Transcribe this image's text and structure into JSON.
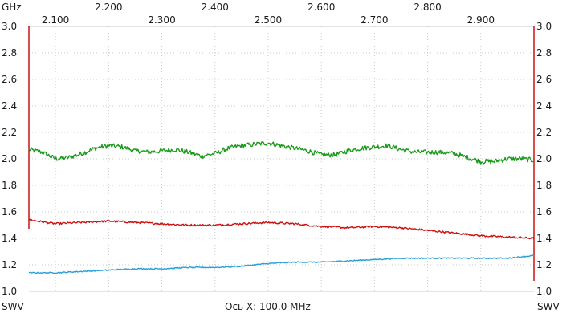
{
  "header": {
    "unit_label": "GHz"
  },
  "footer": {
    "left_label": "SWV",
    "axis_caption": "Ось X: 100.0 MHz",
    "right_label": "SWV"
  },
  "colors": {
    "background": "#ffffff",
    "grid": "#c8c8c8",
    "frame": "#cc0000",
    "series_green": "#1a9a1a",
    "series_red": "#cc1111",
    "series_blue": "#2a9ed8"
  },
  "chart_data": {
    "type": "line",
    "x_range": [
      2.05,
      3.0
    ],
    "ylim": [
      1.0,
      3.0
    ],
    "grid": true,
    "x_ticks_lower": [
      "2.100",
      "2.300",
      "2.500",
      "2.700",
      "2.900"
    ],
    "x_ticks_upper": [
      "2.200",
      "2.400",
      "2.600",
      "2.800"
    ],
    "y_ticks": [
      "3.0",
      "2.8",
      "2.6",
      "2.4",
      "2.2",
      "2.0",
      "1.8",
      "1.6",
      "1.4",
      "1.2",
      "1.0"
    ],
    "series": [
      {
        "color": "#1a9a1a",
        "x": [
          2.05,
          2.075,
          2.1,
          2.125,
          2.15,
          2.175,
          2.2,
          2.225,
          2.25,
          2.275,
          2.3,
          2.325,
          2.35,
          2.375,
          2.4,
          2.425,
          2.45,
          2.475,
          2.5,
          2.525,
          2.55,
          2.575,
          2.6,
          2.625,
          2.65,
          2.675,
          2.7,
          2.725,
          2.75,
          2.775,
          2.8,
          2.825,
          2.85,
          2.875,
          2.9,
          2.925,
          2.95,
          2.975,
          3.0
        ],
        "values": [
          2.07,
          2.05,
          2.0,
          2.01,
          2.04,
          2.08,
          2.1,
          2.09,
          2.06,
          2.05,
          2.06,
          2.07,
          2.05,
          2.02,
          2.04,
          2.08,
          2.1,
          2.11,
          2.12,
          2.1,
          2.08,
          2.06,
          2.03,
          2.03,
          2.06,
          2.08,
          2.09,
          2.1,
          2.07,
          2.05,
          2.05,
          2.05,
          2.04,
          2.01,
          1.98,
          1.98,
          2.0,
          2.0,
          1.99
        ]
      },
      {
        "color": "#cc1111",
        "x": [
          2.05,
          2.1,
          2.15,
          2.2,
          2.25,
          2.3,
          2.35,
          2.4,
          2.45,
          2.5,
          2.55,
          2.6,
          2.65,
          2.7,
          2.75,
          2.8,
          2.85,
          2.9,
          2.95,
          3.0
        ],
        "values": [
          1.54,
          1.51,
          1.52,
          1.53,
          1.52,
          1.51,
          1.5,
          1.5,
          1.51,
          1.52,
          1.51,
          1.49,
          1.48,
          1.49,
          1.48,
          1.46,
          1.44,
          1.42,
          1.41,
          1.4
        ]
      },
      {
        "color": "#2a9ed8",
        "x": [
          2.05,
          2.1,
          2.15,
          2.2,
          2.25,
          2.3,
          2.35,
          2.4,
          2.45,
          2.5,
          2.55,
          2.6,
          2.65,
          2.7,
          2.75,
          2.8,
          2.85,
          2.9,
          2.95,
          3.0
        ],
        "values": [
          1.14,
          1.14,
          1.15,
          1.16,
          1.17,
          1.17,
          1.18,
          1.18,
          1.19,
          1.21,
          1.22,
          1.22,
          1.23,
          1.24,
          1.25,
          1.25,
          1.25,
          1.25,
          1.25,
          1.27
        ]
      }
    ]
  }
}
